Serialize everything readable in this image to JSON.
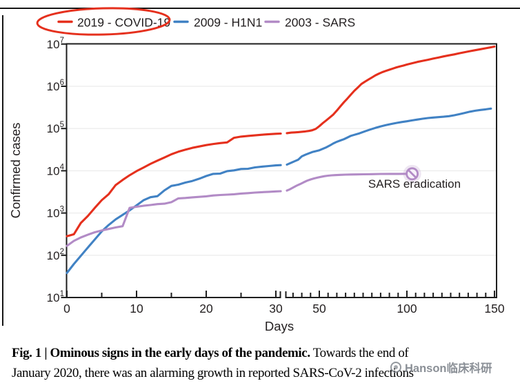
{
  "legend": {
    "items": [
      {
        "label": "2019 - COVID-19",
        "color": "#e5301d",
        "circled": true
      },
      {
        "label": "2009 - H1N1",
        "color": "#4182c4",
        "circled": false
      },
      {
        "label": "2003 - SARS",
        "color": "#b28bc6",
        "circled": false
      }
    ],
    "highlight_ellipse_color": "#e5301d"
  },
  "chart_data": {
    "type": "line",
    "title": "",
    "xlabel": "Days",
    "ylabel": "Confirmed cases",
    "y_scale": "log10",
    "ylim": [
      10,
      10000000
    ],
    "y_tick_exponents": [
      1,
      2,
      3,
      4,
      5,
      6,
      7
    ],
    "grid": "horizontal-light",
    "x_axis": {
      "left_panel_major_ticks": [
        0,
        10,
        20,
        30
      ],
      "right_panel_major_ticks": [
        50,
        100,
        150
      ],
      "minor_tick_step": 5,
      "axis_break_between_days": [
        31,
        32
      ]
    },
    "series": [
      {
        "name": "2019 - COVID-19",
        "color": "#e5301d",
        "points": [
          [
            0,
            282
          ],
          [
            1,
            314
          ],
          [
            2,
            581
          ],
          [
            3,
            846
          ],
          [
            4,
            1320
          ],
          [
            5,
            2014
          ],
          [
            6,
            2798
          ],
          [
            7,
            4593
          ],
          [
            8,
            6065
          ],
          [
            9,
            7818
          ],
          [
            10,
            9826
          ],
          [
            11,
            11953
          ],
          [
            12,
            14557
          ],
          [
            13,
            17391
          ],
          [
            14,
            20630
          ],
          [
            15,
            24554
          ],
          [
            16,
            28276
          ],
          [
            17,
            31481
          ],
          [
            18,
            34886
          ],
          [
            19,
            37558
          ],
          [
            20,
            40554
          ],
          [
            21,
            43103
          ],
          [
            22,
            45171
          ],
          [
            23,
            46997
          ],
          [
            24,
            60328
          ],
          [
            25,
            64437
          ],
          [
            26,
            66885
          ],
          [
            27,
            69030
          ],
          [
            28,
            71224
          ],
          [
            29,
            73332
          ],
          [
            30,
            75204
          ],
          [
            30.7,
            76000
          ],
          [
            31.5,
            77800
          ],
          [
            34,
            80100
          ],
          [
            36,
            81100
          ],
          [
            38,
            82300
          ],
          [
            40,
            83700
          ],
          [
            42,
            85400
          ],
          [
            44,
            87700
          ],
          [
            46,
            91000
          ],
          [
            48,
            98200
          ],
          [
            50,
            113700
          ],
          [
            52,
            134500
          ],
          [
            54,
            156400
          ],
          [
            56,
            182400
          ],
          [
            58,
            214900
          ],
          [
            60,
            266100
          ],
          [
            62,
            334900
          ],
          [
            64,
            417900
          ],
          [
            66,
            509200
          ],
          [
            68,
            634800
          ],
          [
            70,
            782400
          ],
          [
            72,
            937600
          ],
          [
            74,
            1133800
          ],
          [
            76,
            1279700
          ],
          [
            78,
            1440000
          ],
          [
            80,
            1610900
          ],
          [
            82,
            1812700
          ],
          [
            84,
            1991500
          ],
          [
            86,
            2160200
          ],
          [
            88,
            2314600
          ],
          [
            90,
            2471100
          ],
          [
            92,
            2626300
          ],
          [
            94,
            2804800
          ],
          [
            96,
            2954200
          ],
          [
            98,
            3090400
          ],
          [
            100,
            3267200
          ],
          [
            103,
            3517300
          ],
          [
            106,
            3778500
          ],
          [
            109,
            4013700
          ],
          [
            112,
            4248300
          ],
          [
            115,
            4525500
          ],
          [
            118,
            4789200
          ],
          [
            121,
            5103000
          ],
          [
            124,
            5404500
          ],
          [
            127,
            5691800
          ],
          [
            130,
            6057900
          ],
          [
            133,
            6416800
          ],
          [
            136,
            6799700
          ],
          [
            139,
            7145500
          ],
          [
            142,
            7553200
          ],
          [
            145,
            7941000
          ],
          [
            148,
            8385400
          ],
          [
            150,
            8708000
          ]
        ]
      },
      {
        "name": "2009 - H1N1",
        "color": "#4182c4",
        "points": [
          [
            0,
            38
          ],
          [
            1,
            62
          ],
          [
            2,
            97
          ],
          [
            3,
            152
          ],
          [
            4,
            236
          ],
          [
            5,
            367
          ],
          [
            6,
            522
          ],
          [
            7,
            708
          ],
          [
            8,
            903
          ],
          [
            9,
            1152
          ],
          [
            10,
            1516
          ],
          [
            11,
            2003
          ],
          [
            12,
            2371
          ],
          [
            13,
            2500
          ],
          [
            14,
            3440
          ],
          [
            15,
            4379
          ],
          [
            16,
            4694
          ],
          [
            17,
            5251
          ],
          [
            18,
            5728
          ],
          [
            19,
            6497
          ],
          [
            20,
            7520
          ],
          [
            21,
            8451
          ],
          [
            22,
            8585
          ],
          [
            23,
            9830
          ],
          [
            24,
            10243
          ],
          [
            25,
            11034
          ],
          [
            26,
            11168
          ],
          [
            27,
            12022
          ],
          [
            28,
            12515
          ],
          [
            29,
            12954
          ],
          [
            30,
            13398
          ],
          [
            30.7,
            13600
          ],
          [
            31.5,
            14000
          ],
          [
            34,
            15510
          ],
          [
            36,
            16900
          ],
          [
            38,
            18300
          ],
          [
            40,
            21940
          ],
          [
            42,
            23900
          ],
          [
            44,
            25800
          ],
          [
            46,
            27740
          ],
          [
            48,
            29100
          ],
          [
            50,
            30600
          ],
          [
            52,
            33100
          ],
          [
            54,
            35900
          ],
          [
            56,
            39600
          ],
          [
            58,
            44300
          ],
          [
            60,
            48500
          ],
          [
            62,
            52200
          ],
          [
            64,
            55870
          ],
          [
            66,
            61100
          ],
          [
            68,
            67000
          ],
          [
            70,
            70890
          ],
          [
            73,
            77200
          ],
          [
            76,
            85800
          ],
          [
            79,
            94510
          ],
          [
            82,
            103500
          ],
          [
            85,
            112300
          ],
          [
            88,
            120400
          ],
          [
            91,
            128300
          ],
          [
            94,
            135600
          ],
          [
            97,
            142400
          ],
          [
            100,
            148700
          ],
          [
            103,
            156100
          ],
          [
            106,
            163200
          ],
          [
            109,
            170300
          ],
          [
            112,
            177460
          ],
          [
            115,
            182170
          ],
          [
            118,
            186300
          ],
          [
            121,
            190600
          ],
          [
            124,
            196300
          ],
          [
            127,
            205800
          ],
          [
            130,
            218400
          ],
          [
            133,
            234200
          ],
          [
            136,
            250300
          ],
          [
            139,
            263600
          ],
          [
            142,
            274800
          ],
          [
            145,
            284900
          ],
          [
            148,
            296500
          ]
        ]
      },
      {
        "name": "2003 - SARS",
        "color": "#b28bc6",
        "points": [
          [
            0,
            167
          ],
          [
            1,
            219
          ],
          [
            2,
            264
          ],
          [
            3,
            306
          ],
          [
            4,
            350
          ],
          [
            5,
            386
          ],
          [
            6,
            420
          ],
          [
            7,
            456
          ],
          [
            8,
            487
          ],
          [
            9,
            1323
          ],
          [
            10,
            1408
          ],
          [
            11,
            1485
          ],
          [
            12,
            1550
          ],
          [
            13,
            1622
          ],
          [
            14,
            1662
          ],
          [
            15,
            1804
          ],
          [
            16,
            2223
          ],
          [
            17,
            2270
          ],
          [
            18,
            2353
          ],
          [
            19,
            2416
          ],
          [
            20,
            2481
          ],
          [
            21,
            2601
          ],
          [
            22,
            2671
          ],
          [
            23,
            2722
          ],
          [
            24,
            2781
          ],
          [
            25,
            2890
          ],
          [
            26,
            2960
          ],
          [
            27,
            3040
          ],
          [
            28,
            3110
          ],
          [
            29,
            3180
          ],
          [
            30,
            3250
          ],
          [
            30.7,
            3280
          ],
          [
            31.5,
            3400
          ],
          [
            33,
            3610
          ],
          [
            35,
            4000
          ],
          [
            37,
            4440
          ],
          [
            39,
            4840
          ],
          [
            41,
            5310
          ],
          [
            43,
            5810
          ],
          [
            45,
            6230
          ],
          [
            47,
            6580
          ],
          [
            49,
            6900
          ],
          [
            51,
            7180
          ],
          [
            53,
            7450
          ],
          [
            55,
            7650
          ],
          [
            57,
            7790
          ],
          [
            59,
            7900
          ],
          [
            62,
            8000
          ],
          [
            65,
            8100
          ],
          [
            68,
            8150
          ],
          [
            71,
            8200
          ],
          [
            75,
            8250
          ],
          [
            80,
            8320
          ],
          [
            85,
            8400
          ],
          [
            90,
            8440
          ],
          [
            95,
            8450
          ],
          [
            100,
            8460
          ],
          [
            103,
            8470
          ]
        ]
      }
    ],
    "annotation": {
      "label": "SARS eradication",
      "marker": "prohibition-circle",
      "day": 103,
      "cases": 8470,
      "marker_color": "#b28bc6"
    }
  },
  "caption": {
    "line1_bold": "Fig. 1 | Ominous signs in the early days of the pandemic.",
    "line1_rest": "Towards the end of",
    "line2": "January 2020, there was an alarming growth in reported SARS-CoV-2 infections"
  },
  "watermark": {
    "text": "Hanson临床科研"
  }
}
